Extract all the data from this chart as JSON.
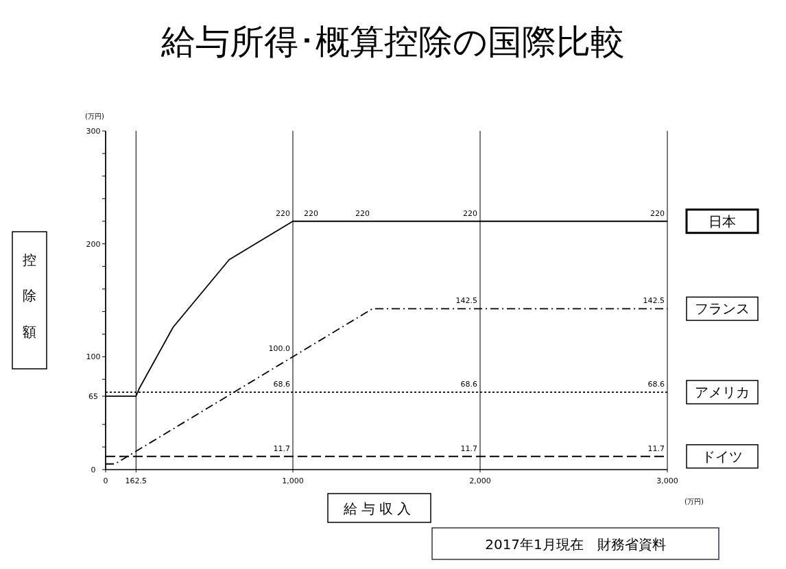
{
  "chart_data": {
    "type": "line",
    "title": "給与所得･概算控除の国際比較",
    "xlabel": "給与収入",
    "ylabel": "控除額",
    "xlim": [
      0,
      3000
    ],
    "xticks": [
      0,
      162.5,
      {
        "value": 1000,
        "label": "1,000"
      },
      {
        "value": 2000,
        "label": "2,000"
      },
      {
        "value": 3000,
        "label": "3,000"
      }
    ],
    "ylim": [
      0,
      300
    ],
    "yticks": [
      0,
      {
        "value": 20,
        "label": null
      },
      {
        "value": 40,
        "label": null
      },
      65,
      {
        "value": 80,
        "label": null
      },
      100,
      {
        "value": 120,
        "label": null
      },
      {
        "value": 140,
        "label": null
      },
      {
        "value": 160,
        "label": null
      },
      {
        "value": 180,
        "label": null
      },
      200,
      {
        "value": 220,
        "label": null
      },
      {
        "value": 240,
        "label": null
      },
      {
        "value": 260,
        "label": null
      },
      {
        "value": 280,
        "label": null
      },
      300
    ],
    "grid": "x",
    "legend": false,
    "marker": "none",
    "series": [
      {
        "name": "日本",
        "color": "#000000",
        "line_style": "solid",
        "x": [
          0,
          162.5,
          180,
          360,
          660,
          1000,
          3000
        ],
        "values": [
          65,
          65,
          72,
          126,
          186,
          220,
          220
        ]
      },
      {
        "name": "フランス",
        "color": "#000000",
        "line_style": "dashdot",
        "x": [
          0,
          50,
          1425,
          3000
        ],
        "values": [
          5,
          5,
          142.5,
          142.5
        ]
      },
      {
        "name": "アメリカ",
        "color": "#000000",
        "line_style": "dotted",
        "x": [
          0,
          3000
        ],
        "values": [
          68.6,
          68.6
        ]
      },
      {
        "name": "ドイツ",
        "color": "#000000",
        "line_style": "dashed",
        "x": [
          0,
          3000
        ],
        "values": [
          11.7,
          11.7
        ]
      }
    ],
    "annotations": [
      "(万円)",
      "(万円)",
      "2017年1月現在　財務省資料",
      {
        "text": "220",
        "x": 1000,
        "y": 220
      },
      {
        "text": "220",
        "x": 1150,
        "y": 220
      },
      {
        "text": "220",
        "x": 1425,
        "y": 220
      },
      {
        "text": "220",
        "x": 2000,
        "y": 220
      },
      {
        "text": "220",
        "x": 3000,
        "y": 220
      },
      {
        "text": "142.5",
        "x": 2000,
        "y": 142.5
      },
      {
        "text": "142.5",
        "x": 3000,
        "y": 142.5
      },
      {
        "text": "100.0",
        "x": 1000,
        "y": 100
      },
      {
        "text": "68.6",
        "x": 1000,
        "y": 68.6
      },
      {
        "text": "68.6",
        "x": 2000,
        "y": 68.6
      },
      {
        "text": "68.6",
        "x": 3000,
        "y": 68.6
      },
      {
        "text": "11.7",
        "x": 1000,
        "y": 11.7
      },
      {
        "text": "11.7",
        "x": 2000,
        "y": 11.7
      },
      {
        "text": "11.7",
        "x": 3000,
        "y": 11.7
      }
    ]
  }
}
